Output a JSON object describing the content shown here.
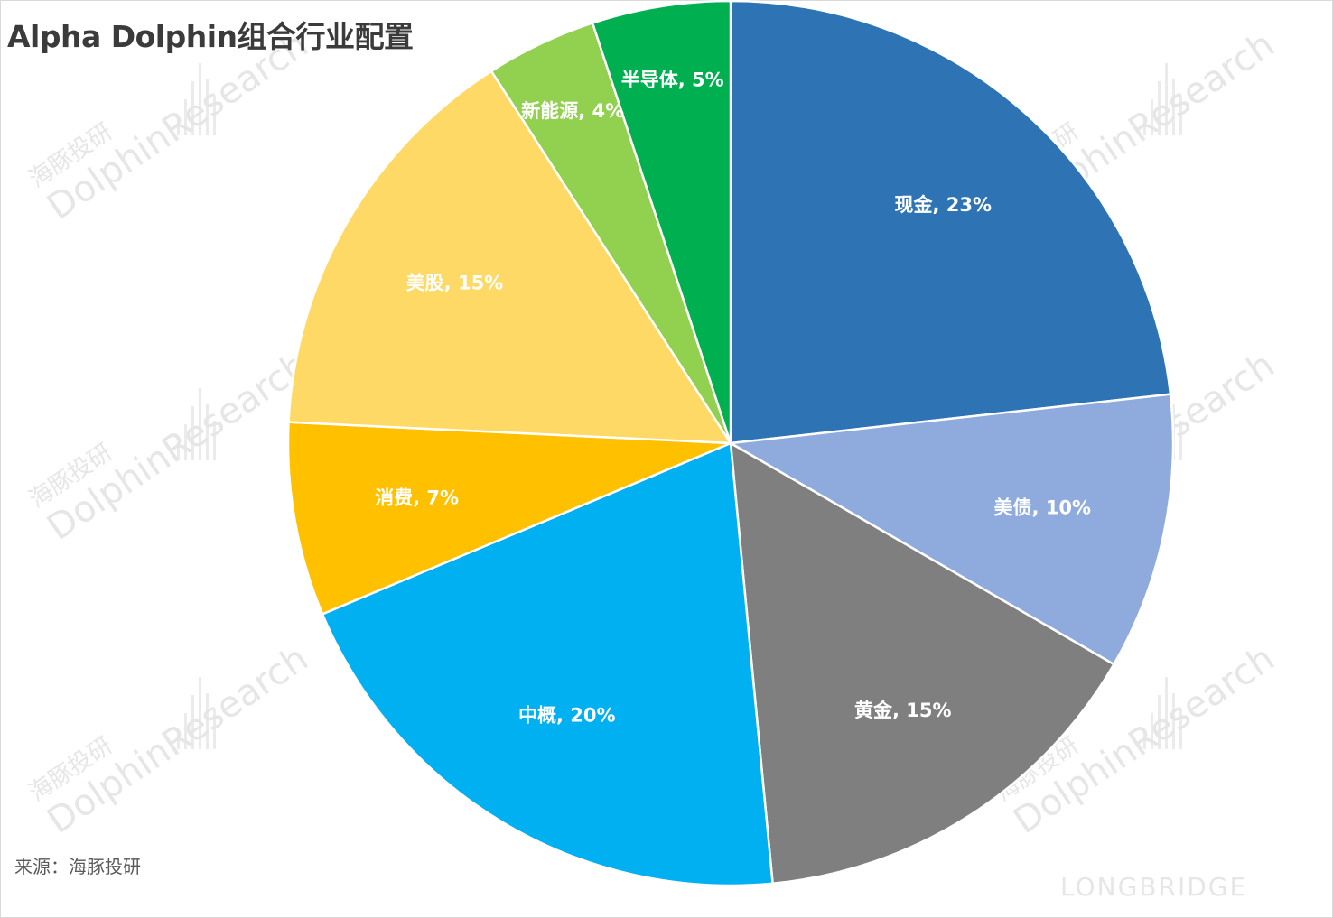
{
  "chart_data": {
    "type": "pie",
    "title": "Alpha Dolphin组合行业配置",
    "start_angle_deg": 0,
    "direction": "clockwise",
    "slices": [
      {
        "label": "现金",
        "value": 23,
        "display": "现金, 23%",
        "color": "#2e74b5"
      },
      {
        "label": "美债",
        "value": 10,
        "display": "美债, 10%",
        "color": "#8faadc"
      },
      {
        "label": "黄金",
        "value": 15,
        "display": "黄金, 15%",
        "color": "#7f7f7f"
      },
      {
        "label": "中概",
        "value": 20,
        "display": "中概, 20%",
        "color": "#00b0f0"
      },
      {
        "label": "消费",
        "value": 7,
        "display": "消费, 7%",
        "color": "#ffc000"
      },
      {
        "label": "美股",
        "value": 15,
        "display": "美股, 15%",
        "color": "#ffd966"
      },
      {
        "label": "新能源",
        "value": 4,
        "display": "新能源, 4%",
        "color": "#92d050"
      },
      {
        "label": "半导体",
        "value": 5,
        "display": "半导体, 5%",
        "color": "#00b050"
      }
    ]
  },
  "source": "来源：海豚投研",
  "watermark": {
    "cn": "海豚投研",
    "en": "DolphinResearch",
    "brand": "LONGBRIDGE"
  }
}
